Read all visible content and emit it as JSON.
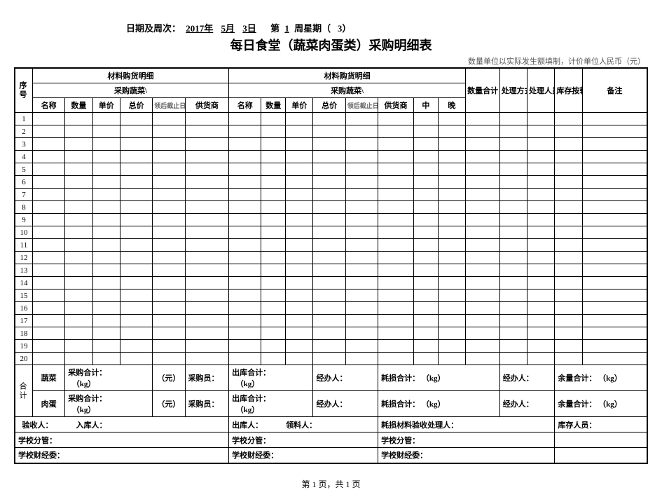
{
  "date_line": {
    "prefix": "日期及周次：",
    "year": "2017年",
    "month": "5月",
    "day": "3日",
    "week_prefix": "第",
    "week_num": "1",
    "week_label": "周星期（",
    "weekday": "3",
    "week_suffix": "）"
  },
  "title": "每日食堂（蔬菜肉蛋类）采购明细表",
  "subnote": "数量单位以实际发生额填制，计价单位人民币（元）",
  "headers": {
    "seq": "序号",
    "mat_detail": "材料购货明细",
    "veg_purchase": "采购蔬菜\\",
    "name": "名称",
    "qty": "数量",
    "price": "单价",
    "total": "总价",
    "deadline": "领后截止日期",
    "supplier": "供货商",
    "middle": "中",
    "evening": "晚",
    "qty_total": "数量合计",
    "process_method": "处理方式",
    "process_person": "处理人员",
    "stock_transfer": "库存按转数量",
    "remarks": "备注"
  },
  "row_numbers": [
    "1",
    "2",
    "3",
    "4",
    "5",
    "6",
    "7",
    "8",
    "9",
    "10",
    "11",
    "12",
    "13",
    "14",
    "15",
    "16",
    "17",
    "18",
    "19",
    "20"
  ],
  "summary": {
    "heji": "合计",
    "veg_label": "蔬菜",
    "meat_label": "肉蛋",
    "purchase_total": "采购合计：",
    "kg_unit": "（kg）",
    "yuan_unit": "（元）",
    "buyer": "采购员：",
    "out_total": "出库合计：",
    "agent": "经办人：",
    "loss_total": "耗损合计：",
    "balance_total": "余量合计：",
    "receiver": "验收人：",
    "stockin": "入库人：",
    "stockout": "出库人：",
    "picker": "领料人：",
    "loss_handler": "耗损材料验收处理人：",
    "stock_person": "库存人员：",
    "school_mgr": "学校分管：",
    "school_finance": "学校财经委："
  },
  "page_footer": "第 1 页，共 1 页"
}
